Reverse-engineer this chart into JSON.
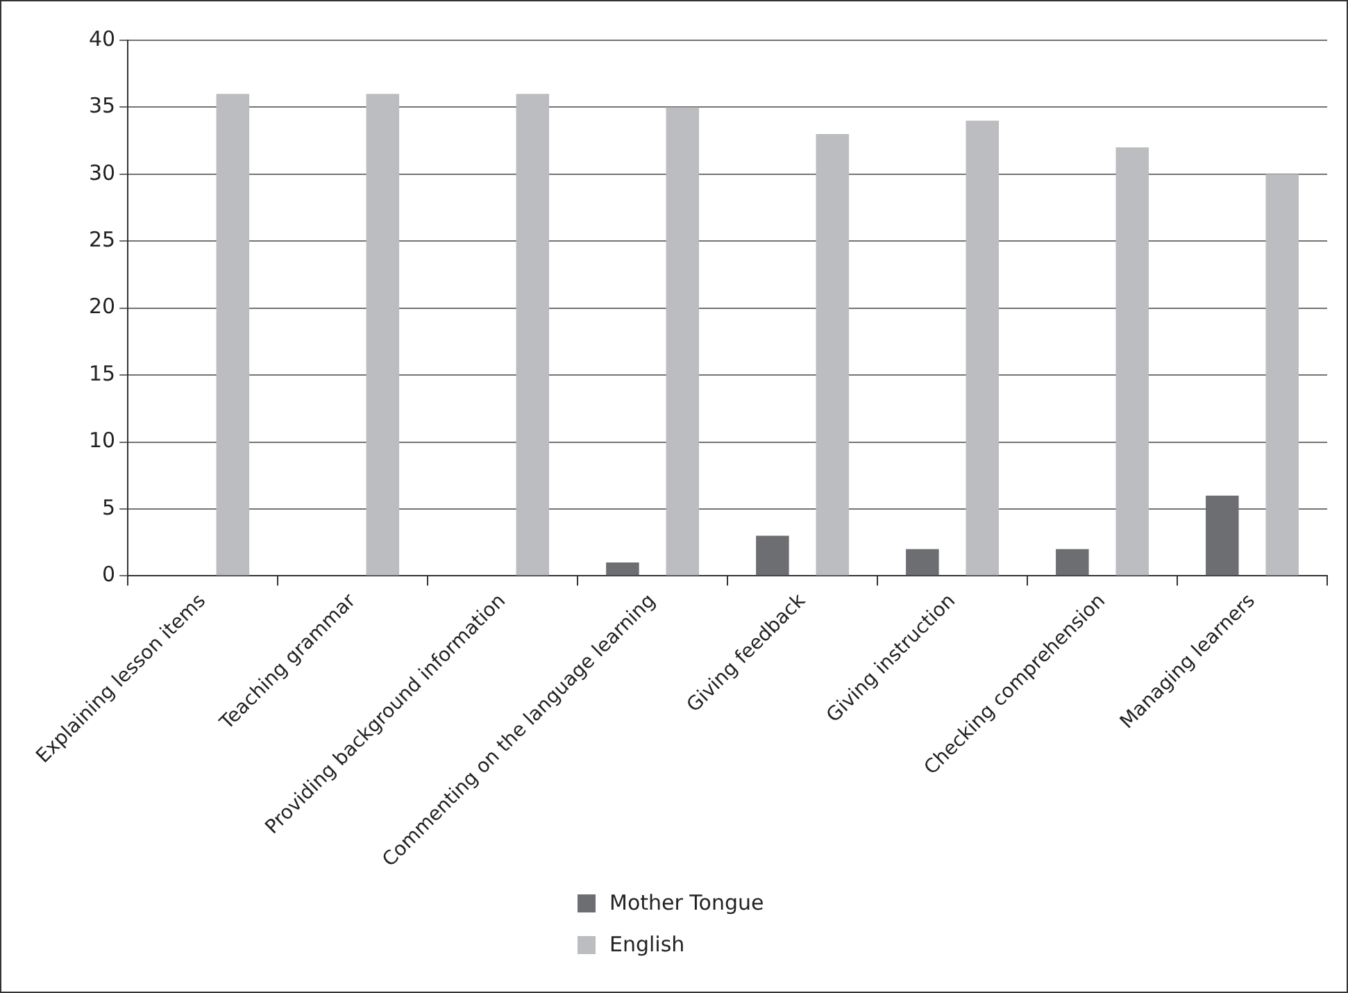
{
  "chart_data": {
    "type": "bar",
    "categories": [
      "Explaining lesson items",
      "Teaching grammar",
      "Providing background information",
      "Commenting on the language learning",
      "Giving feedback",
      "Giving instruction",
      "Checking comprehension",
      "Managing learners"
    ],
    "series": [
      {
        "name": "Mother Tongue",
        "color": "#6d6e71",
        "values": [
          0,
          0,
          0,
          1,
          3,
          2,
          2,
          6
        ]
      },
      {
        "name": "English",
        "color": "#bcbdc0",
        "values": [
          36,
          36,
          36,
          35,
          33,
          34,
          32,
          30
        ]
      }
    ],
    "ylim": [
      0,
      40
    ],
    "yticks": [
      0,
      5,
      10,
      15,
      20,
      25,
      30,
      35,
      40
    ],
    "grid": "y",
    "legend": "bottom"
  }
}
